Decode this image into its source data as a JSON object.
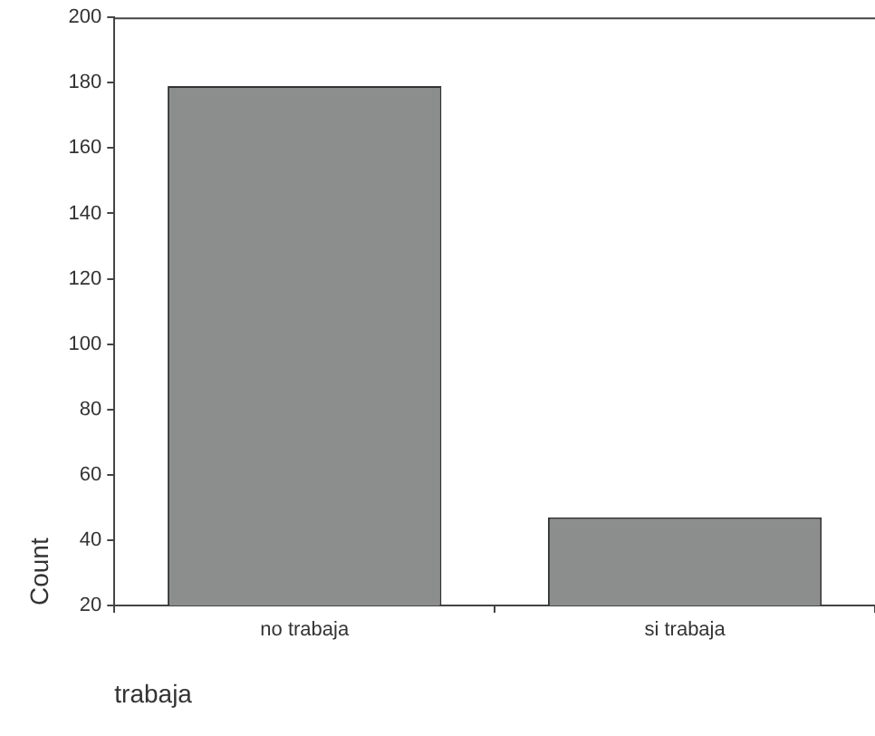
{
  "chart_data": {
    "type": "bar",
    "xlabel": "trabaja",
    "ylabel": "Count",
    "categories": [
      "no trabaja",
      "si trabaja"
    ],
    "values": [
      179,
      47
    ],
    "color": "#8c8e8e",
    "ylim": [
      20,
      200
    ],
    "yticks": [
      20,
      40,
      60,
      80,
      100,
      120,
      140,
      160,
      180,
      200
    ],
    "grid": false,
    "legend": false
  }
}
